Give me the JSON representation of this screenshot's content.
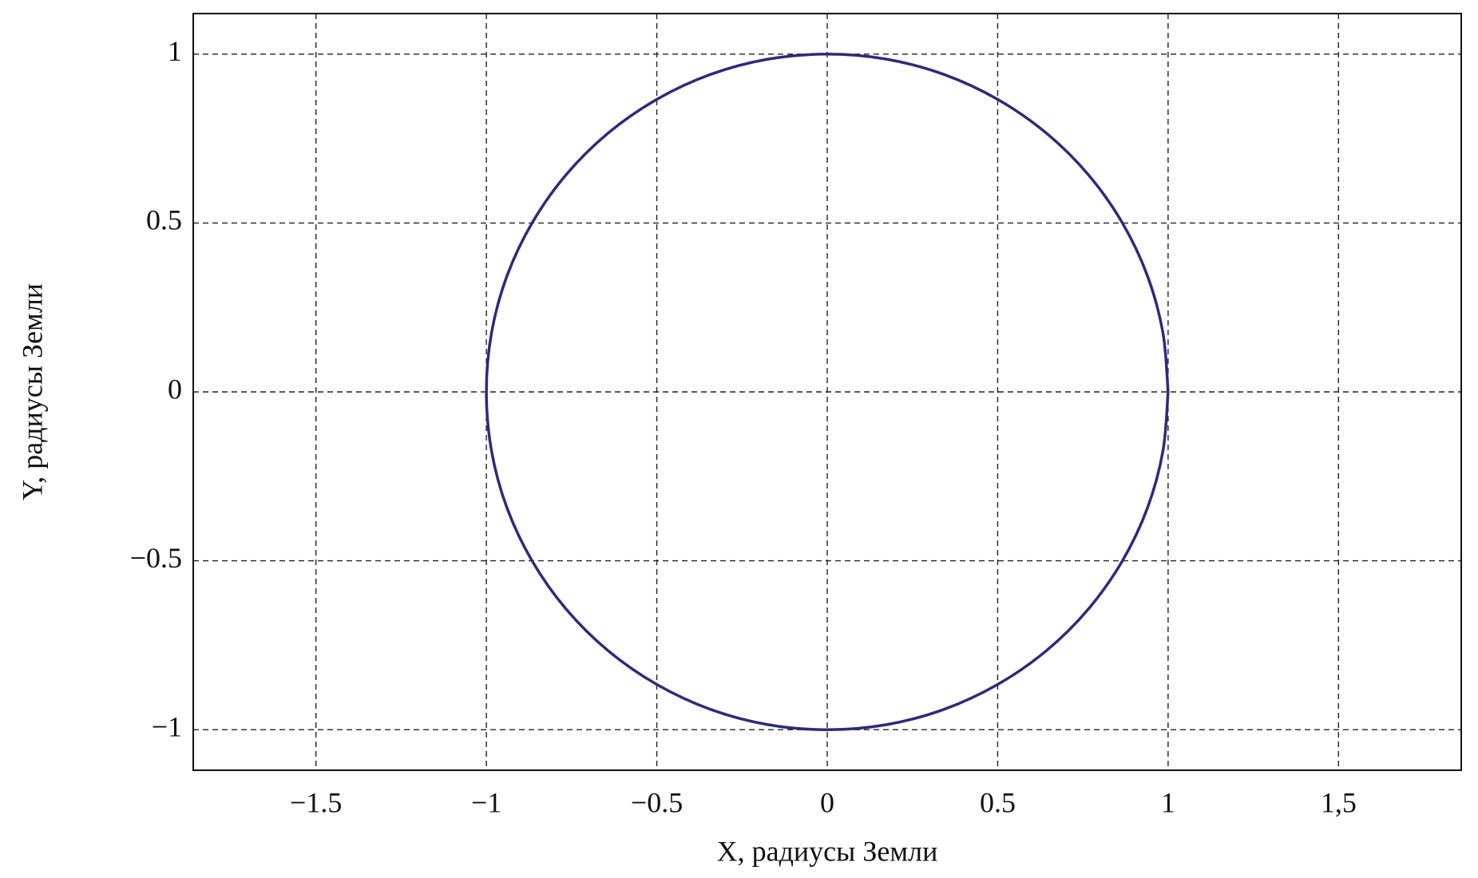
{
  "chart_data": {
    "type": "line",
    "x_label": "X, радиусы Земли",
    "y_label": "Y, радиусы Земли",
    "x": [
      1,
      0.985,
      0.94,
      0.866,
      0.766,
      0.643,
      0.5,
      0.342,
      0.174,
      0,
      -0.174,
      -0.342,
      -0.5,
      -0.643,
      -0.766,
      -0.866,
      -0.94,
      -0.985,
      -1,
      -0.985,
      -0.94,
      -0.866,
      -0.766,
      -0.643,
      -0.5,
      -0.342,
      -0.174,
      0,
      0.174,
      0.342,
      0.5,
      0.643,
      0.766,
      0.866,
      0.94,
      0.985,
      1
    ],
    "series": [
      {
        "color": "#2d2a7c",
        "values": [
          0,
          0.174,
          0.342,
          0.5,
          0.643,
          0.766,
          0.866,
          0.94,
          0.985,
          1,
          0.985,
          0.94,
          0.866,
          0.766,
          0.643,
          0.5,
          0.342,
          0.174,
          0,
          -0.174,
          -0.342,
          -0.5,
          -0.643,
          -0.766,
          -0.866,
          -0.94,
          -0.985,
          -1,
          -0.985,
          -0.94,
          -0.866,
          -0.766,
          -0.643,
          -0.5,
          -0.342,
          -0.174,
          0
        ]
      }
    ],
    "xlim": [
      -1.86,
      1.86
    ],
    "ylim": [
      -1.12,
      1.12
    ],
    "xticks": [
      {
        "value": -1.5,
        "label": "−1.5"
      },
      {
        "value": -1,
        "label": "−1"
      },
      {
        "value": -0.5,
        "label": "−0.5"
      },
      0,
      0.5,
      1,
      {
        "value": 1.5,
        "label": "1,5"
      }
    ],
    "yticks": [
      {
        "value": -1,
        "label": "−1"
      },
      {
        "value": -0.5,
        "label": "−0.5"
      },
      0,
      0.5,
      1
    ],
    "grid": true
  }
}
